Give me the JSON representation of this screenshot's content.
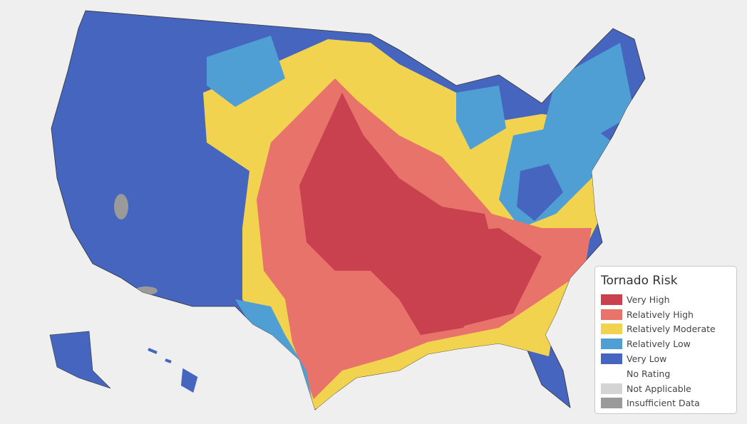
{
  "legend": {
    "title": "Tornado Risk",
    "items": [
      {
        "label": "Very High",
        "color": "#c9404f"
      },
      {
        "label": "Relatively High",
        "color": "#e8736b"
      },
      {
        "label": "Relatively Moderate",
        "color": "#f2d34f"
      },
      {
        "label": "Relatively Low",
        "color": "#4f9fd4"
      },
      {
        "label": "Very Low",
        "color": "#4665bf"
      },
      {
        "label": "No Rating",
        "color": "#ffffff"
      },
      {
        "label": "Not Applicable",
        "color": "#d4d4d4"
      },
      {
        "label": "Insufficient Data",
        "color": "#9a9a9a"
      }
    ]
  }
}
